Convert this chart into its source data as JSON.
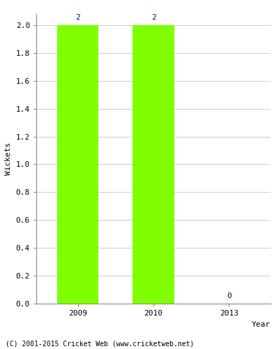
{
  "categories": [
    "2009",
    "2010",
    "2013"
  ],
  "values": [
    2,
    2,
    0
  ],
  "bar_color": "#7fff00",
  "bar_edgecolor": "#7fff00",
  "label_color": "#00008b",
  "xlabel": "Year",
  "ylabel": "Wickets",
  "ylim": [
    0.0,
    2.0
  ],
  "yticks": [
    0.0,
    0.2,
    0.4,
    0.6,
    0.8,
    1.0,
    1.2,
    1.4,
    1.6,
    1.8,
    2.0
  ],
  "background_color": "#ffffff",
  "axes_background": "#ffffff",
  "grid_color": "#cccccc",
  "label_fontsize": 8,
  "axis_label_fontsize": 8,
  "tick_fontsize": 8,
  "copyright": "(C) 2001-2015 Cricket Web (www.cricketweb.net)",
  "bar_width": 0.55
}
